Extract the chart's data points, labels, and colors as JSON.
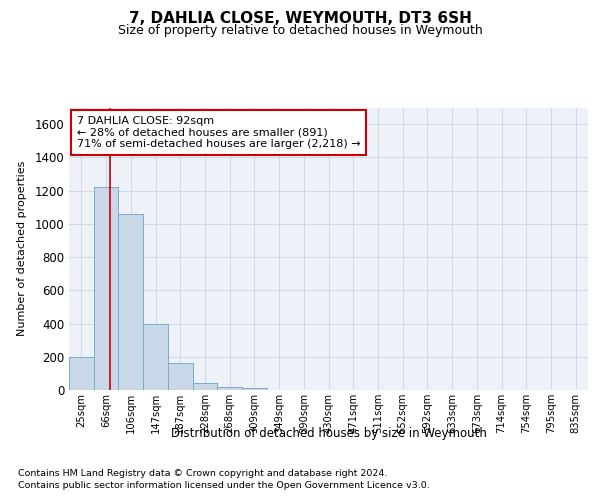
{
  "title": "7, DAHLIA CLOSE, WEYMOUTH, DT3 6SH",
  "subtitle": "Size of property relative to detached houses in Weymouth",
  "xlabel": "Distribution of detached houses by size in Weymouth",
  "ylabel": "Number of detached properties",
  "footnote1": "Contains HM Land Registry data © Crown copyright and database right 2024.",
  "footnote2": "Contains public sector information licensed under the Open Government Licence v3.0.",
  "bin_labels": [
    "25sqm",
    "66sqm",
    "106sqm",
    "147sqm",
    "187sqm",
    "228sqm",
    "268sqm",
    "309sqm",
    "349sqm",
    "390sqm",
    "430sqm",
    "471sqm",
    "511sqm",
    "552sqm",
    "592sqm",
    "633sqm",
    "673sqm",
    "714sqm",
    "754sqm",
    "795sqm",
    "835sqm"
  ],
  "bar_heights": [
    200,
    1220,
    1060,
    400,
    160,
    40,
    20,
    10,
    0,
    0,
    0,
    0,
    0,
    0,
    0,
    0,
    0,
    0,
    0,
    0,
    0
  ],
  "bar_color": "#c8d8e8",
  "bar_edge_color": "#7aaccc",
  "ylim": [
    0,
    1700
  ],
  "yticks": [
    0,
    200,
    400,
    600,
    800,
    1000,
    1200,
    1400,
    1600
  ],
  "property_size": 92,
  "red_line_color": "#cc0000",
  "annotation_text": "7 DAHLIA CLOSE: 92sqm\n← 28% of detached houses are smaller (891)\n71% of semi-detached houses are larger (2,218) →",
  "annotation_box_color": "#ffffff",
  "annotation_box_edge_color": "#cc0000",
  "grid_color": "#d0d8e8",
  "background_color": "#eef2f8"
}
